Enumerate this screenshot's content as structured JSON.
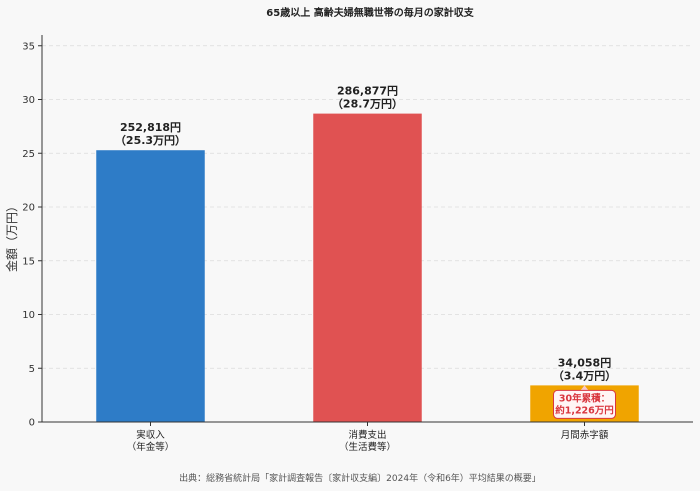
{
  "chart_data": {
    "type": "bar",
    "title": "65歳以上 高齢夫婦無職世帯の毎月の家計収支",
    "ylabel": "金額（万円）",
    "xlabel": "",
    "ylim": [
      0,
      36
    ],
    "yticks": [
      0,
      5,
      10,
      15,
      20,
      25,
      30,
      35
    ],
    "grid": true,
    "categories": [
      [
        "実収入",
        "（年金等）"
      ],
      [
        "消費支出",
        "（生活費等）"
      ],
      [
        "月間赤字額"
      ]
    ],
    "values": [
      25.2818,
      28.6877,
      3.4058
    ],
    "data_labels": [
      [
        "252,818円",
        "（25.3万円）"
      ],
      [
        "286,877円",
        "（28.7万円）"
      ],
      [
        "34,058円",
        "（3.4万円）"
      ]
    ],
    "colors": [
      "#2e7cc7",
      "#e05252",
      "#f0a400"
    ],
    "annotation": {
      "bar_index": 2,
      "lines": [
        "30年累積：",
        "約1,226万円"
      ],
      "border_color": "#d9363e",
      "text_color": "#d9363e"
    },
    "source": "出典：総務省統計局「家計調査報告〔家計収支編〕2024年（令和6年）平均結果の概要」"
  }
}
